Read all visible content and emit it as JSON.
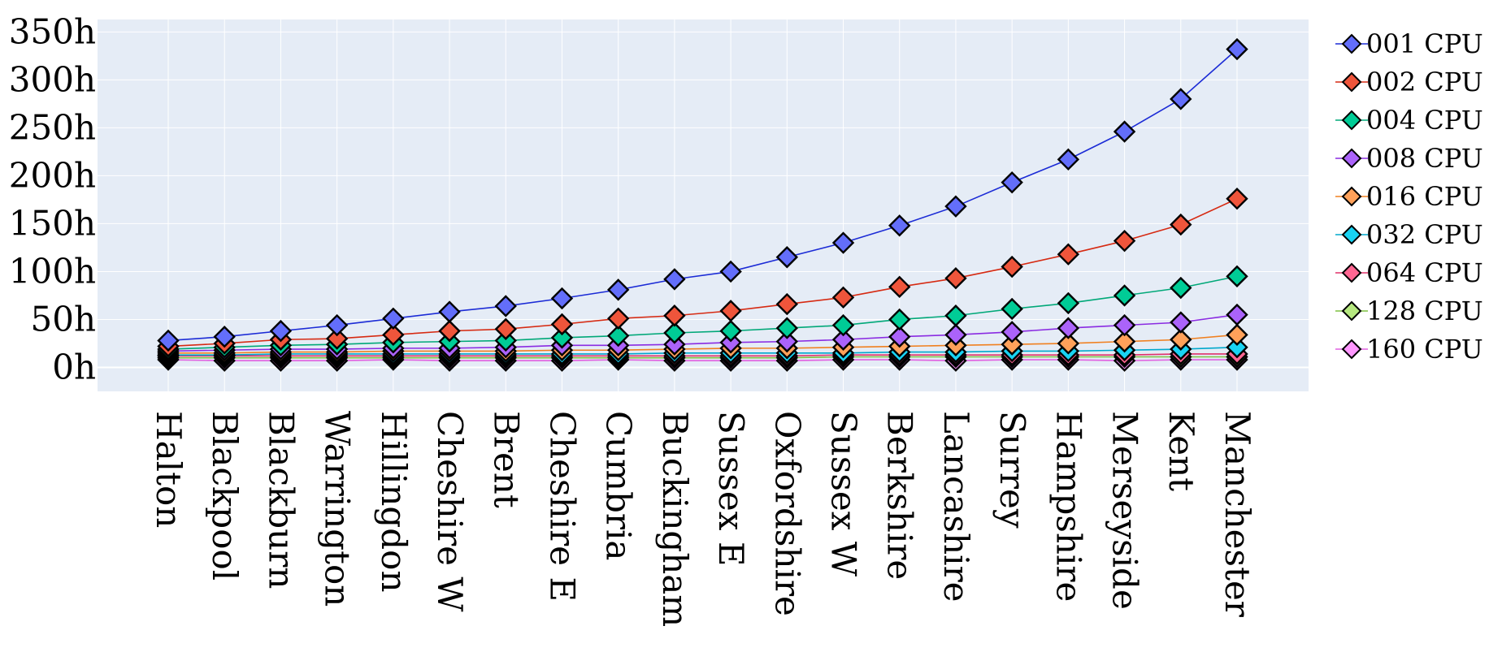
{
  "chart_data": {
    "type": "line",
    "title": "",
    "xlabel": "",
    "ylabel": "",
    "categories": [
      "Halton",
      "Blackpool",
      "Blackburn",
      "Warrington",
      "Hillingdon",
      "Cheshire W",
      "Brent",
      "Cheshire E",
      "Cumbria",
      "Buckingham",
      "Sussex E",
      "Oxfordshire",
      "Sussex W",
      "Berkshire",
      "Lancashire",
      "Surrey",
      "Hampshire",
      "Merseyside",
      "Kent",
      "Manchester"
    ],
    "y_ticks": [
      {
        "value": 0,
        "label": "0h"
      },
      {
        "value": 50,
        "label": "50h"
      },
      {
        "value": 100,
        "label": "100h"
      },
      {
        "value": 150,
        "label": "150h"
      },
      {
        "value": 200,
        "label": "200h"
      },
      {
        "value": 250,
        "label": "250h"
      },
      {
        "value": 300,
        "label": "300h"
      },
      {
        "value": 350,
        "label": "350h"
      }
    ],
    "ylim": [
      -25,
      363
    ],
    "grid": true,
    "legend_position": "right",
    "series": [
      {
        "name": "001 CPU",
        "color": "#636efa",
        "line_color": "#1b2bd6",
        "values": [
          28,
          32,
          38,
          44,
          51,
          58,
          64,
          72,
          81,
          92,
          100,
          115,
          130,
          148,
          168,
          193,
          217,
          246,
          280,
          332
        ]
      },
      {
        "name": "002 CPU",
        "color": "#ef553b",
        "line_color": "#d62a12",
        "values": [
          22,
          25,
          29,
          30,
          34,
          38,
          40,
          45,
          51,
          54,
          59,
          66,
          73,
          84,
          93,
          105,
          118,
          132,
          149,
          176
        ]
      },
      {
        "name": "004 CPU",
        "color": "#00cc96",
        "line_color": "#00a878",
        "values": [
          19,
          21,
          23,
          24,
          26,
          27,
          28,
          31,
          33,
          36,
          38,
          41,
          44,
          50,
          54,
          61,
          67,
          75,
          83,
          95
        ]
      },
      {
        "name": "008 CPU",
        "color": "#ab63fa",
        "line_color": "#8a2be2",
        "values": [
          17,
          18,
          19,
          19,
          20,
          20,
          21,
          23,
          23,
          24,
          26,
          27,
          29,
          32,
          34,
          37,
          41,
          44,
          47,
          55
        ]
      },
      {
        "name": "016 CPU",
        "color": "#ffa15a",
        "line_color": "#f08020",
        "values": [
          15,
          15,
          16,
          16,
          17,
          17,
          17,
          18,
          18,
          19,
          20,
          20,
          21,
          22,
          23,
          24,
          25,
          27,
          29,
          34
        ]
      },
      {
        "name": "032 CPU",
        "color": "#19d3f3",
        "line_color": "#00a8cc",
        "values": [
          13,
          13,
          14,
          14,
          14,
          14,
          14,
          14,
          14,
          15,
          15,
          15,
          15,
          16,
          16,
          17,
          17,
          18,
          19,
          21
        ]
      },
      {
        "name": "064 CPU",
        "color": "#ff6692",
        "line_color": "#e0306a",
        "values": [
          12,
          12,
          12,
          12,
          12,
          12,
          12,
          12,
          12,
          12,
          12,
          12,
          13,
          13,
          13,
          13,
          13,
          13,
          14,
          14
        ]
      },
      {
        "name": "128 CPU",
        "color": "#b6e880",
        "line_color": "#7fc040",
        "values": [
          10,
          10,
          10,
          10,
          10,
          10,
          10,
          10,
          10,
          10,
          10,
          10,
          11,
          11,
          11,
          11,
          11,
          11,
          11,
          11
        ]
      },
      {
        "name": "160 CPU",
        "color": "#ff97ff",
        "line_color": "#e060e0",
        "values": [
          8,
          7,
          7,
          7,
          8,
          7,
          7,
          7,
          8,
          7,
          7,
          7,
          8,
          8,
          7,
          8,
          8,
          7,
          8,
          8
        ]
      }
    ]
  }
}
